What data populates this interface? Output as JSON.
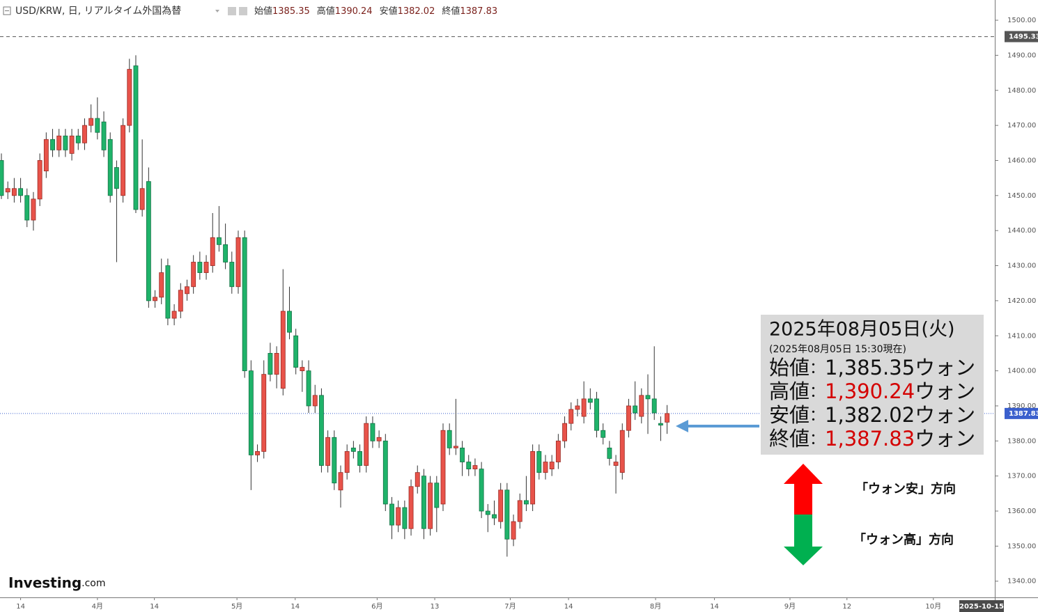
{
  "chart_data": {
    "type": "candlestick",
    "title": "USD/KRW, 日, リアルタイム外国為替",
    "header_values": [
      {
        "label": "始値",
        "value": 1385.35
      },
      {
        "label": "高値",
        "value": 1390.24
      },
      {
        "label": "安値",
        "value": 1382.02
      },
      {
        "label": "終値",
        "value": 1387.83
      }
    ],
    "up_color": "#e8534a",
    "down_color": "#1fb36a",
    "x": [
      0,
      1,
      2,
      3,
      4,
      5,
      6,
      7,
      8,
      9,
      10,
      11,
      12,
      13,
      14,
      15,
      16,
      17,
      18,
      19,
      20,
      21,
      22,
      23,
      24,
      25,
      26,
      27,
      28,
      29,
      30,
      31,
      32,
      33,
      34,
      35,
      36,
      37,
      38,
      39,
      40,
      41,
      42,
      43,
      44,
      45,
      46,
      47,
      48,
      49,
      50,
      51,
      52,
      53,
      54,
      55,
      56,
      57,
      58,
      59,
      60,
      61,
      62,
      63,
      64,
      65,
      66,
      67,
      68,
      69,
      70,
      71,
      72,
      73,
      74,
      75,
      76,
      77,
      78,
      79,
      80,
      81,
      82,
      83,
      84,
      85,
      86,
      87,
      88,
      89,
      90,
      91,
      92,
      93,
      94,
      95,
      96,
      97,
      98,
      99,
      100,
      101,
      102,
      103,
      104
    ],
    "ohlc": [
      [
        1460,
        1462,
        1449,
        1450
      ],
      [
        1451,
        1454,
        1449,
        1452
      ],
      [
        1450,
        1455,
        1448,
        1452
      ],
      [
        1452,
        1455,
        1448,
        1450
      ],
      [
        1450,
        1452,
        1441,
        1443
      ],
      [
        1443,
        1451,
        1440,
        1449
      ],
      [
        1449,
        1462,
        1447,
        1460
      ],
      [
        1457,
        1468,
        1455,
        1466
      ],
      [
        1466,
        1469,
        1461,
        1463
      ],
      [
        1463,
        1469,
        1461,
        1467
      ],
      [
        1467,
        1469,
        1461,
        1463
      ],
      [
        1462,
        1469,
        1460,
        1467
      ],
      [
        1467,
        1469,
        1463,
        1465
      ],
      [
        1465,
        1472,
        1463,
        1470
      ],
      [
        1470,
        1476,
        1468,
        1472
      ],
      [
        1472,
        1478,
        1466,
        1468
      ],
      [
        1471,
        1474,
        1461,
        1463
      ],
      [
        1466,
        1468,
        1448,
        1450
      ],
      [
        1458,
        1460,
        1431,
        1452
      ],
      [
        1450,
        1472,
        1448,
        1470
      ],
      [
        1470,
        1489,
        1468,
        1486
      ],
      [
        1487,
        1490,
        1445,
        1446
      ],
      [
        1446,
        1466,
        1444,
        1452
      ],
      [
        1454,
        1458,
        1418,
        1420
      ],
      [
        1420,
        1423,
        1418,
        1421
      ],
      [
        1421,
        1432,
        1419,
        1428
      ],
      [
        1430,
        1432,
        1413,
        1415
      ],
      [
        1415,
        1419,
        1413,
        1417
      ],
      [
        1417,
        1425,
        1415,
        1423
      ],
      [
        1422,
        1426,
        1420,
        1424
      ],
      [
        1424,
        1433,
        1422,
        1431
      ],
      [
        1431,
        1434,
        1426,
        1428
      ],
      [
        1428,
        1433,
        1426,
        1431
      ],
      [
        1430,
        1445,
        1428,
        1438
      ],
      [
        1438,
        1447,
        1434,
        1436
      ],
      [
        1436,
        1442,
        1429,
        1431
      ],
      [
        1431,
        1434,
        1422,
        1424
      ],
      [
        1424,
        1440,
        1422,
        1438
      ],
      [
        1438,
        1440,
        1398,
        1400
      ],
      [
        1400,
        1403,
        1366,
        1376
      ],
      [
        1376,
        1379,
        1374,
        1377
      ],
      [
        1377,
        1403,
        1375,
        1399
      ],
      [
        1405,
        1408,
        1397,
        1399
      ],
      [
        1399,
        1407,
        1395,
        1405
      ],
      [
        1395,
        1429,
        1393,
        1417
      ],
      [
        1417,
        1424,
        1409,
        1411
      ],
      [
        1410,
        1412,
        1399,
        1401
      ],
      [
        1400,
        1403,
        1394,
        1401
      ],
      [
        1400,
        1403,
        1388,
        1390
      ],
      [
        1390,
        1396,
        1388,
        1393
      ],
      [
        1393,
        1395,
        1371,
        1373
      ],
      [
        1373,
        1383,
        1371,
        1381
      ],
      [
        1381,
        1383,
        1366,
        1368
      ],
      [
        1366,
        1373,
        1361,
        1371
      ],
      [
        1371,
        1379,
        1369,
        1377
      ],
      [
        1378,
        1380,
        1375,
        1377
      ],
      [
        1377,
        1379,
        1371,
        1373
      ],
      [
        1373,
        1387,
        1371,
        1385
      ],
      [
        1385,
        1387,
        1378,
        1380
      ],
      [
        1380,
        1383,
        1378,
        1381
      ],
      [
        1380,
        1382,
        1360,
        1362
      ],
      [
        1362,
        1364,
        1352,
        1356
      ],
      [
        1356,
        1363,
        1354,
        1361
      ],
      [
        1361,
        1363,
        1352,
        1355
      ],
      [
        1355,
        1369,
        1353,
        1367
      ],
      [
        1367,
        1373,
        1365,
        1371
      ],
      [
        1370,
        1372,
        1352,
        1355
      ],
      [
        1355,
        1370,
        1353,
        1368
      ],
      [
        1368,
        1370,
        1354,
        1361
      ],
      [
        1362,
        1385,
        1360,
        1383
      ],
      [
        1383,
        1385,
        1376,
        1378
      ],
      [
        1378,
        1392,
        1376,
        1378.5
      ],
      [
        1378,
        1380,
        1370,
        1374
      ],
      [
        1374,
        1376,
        1370,
        1372
      ],
      [
        1372,
        1375,
        1370,
        1373
      ],
      [
        1372,
        1374,
        1358,
        1360
      ],
      [
        1360,
        1362,
        1354,
        1359
      ],
      [
        1359,
        1363,
        1356,
        1358
      ],
      [
        1357,
        1368,
        1355,
        1366
      ],
      [
        1366,
        1368,
        1347,
        1352
      ],
      [
        1352,
        1359,
        1350,
        1357
      ],
      [
        1357,
        1365,
        1355,
        1363
      ],
      [
        1363,
        1370,
        1360,
        1362
      ],
      [
        1362,
        1379,
        1360,
        1377
      ],
      [
        1377,
        1379,
        1369,
        1371
      ],
      [
        1371,
        1376,
        1369,
        1374
      ],
      [
        1372,
        1376,
        1370,
        1374
      ],
      [
        1374,
        1382,
        1372,
        1380
      ],
      [
        1380,
        1387,
        1378,
        1385
      ],
      [
        1385,
        1391,
        1383,
        1389
      ],
      [
        1389,
        1392,
        1387,
        1390
      ],
      [
        1387,
        1397,
        1385,
        1392
      ],
      [
        1392,
        1395,
        1389,
        1391
      ],
      [
        1392,
        1394,
        1381,
        1383
      ],
      [
        1383,
        1385,
        1379,
        1381
      ],
      [
        1378,
        1380,
        1373,
        1375
      ],
      [
        1373,
        1376,
        1365,
        1374
      ],
      [
        1371,
        1385,
        1369,
        1383
      ],
      [
        1383,
        1392,
        1381,
        1390
      ],
      [
        1390,
        1397,
        1386,
        1388
      ],
      [
        1387,
        1395,
        1385,
        1393
      ],
      [
        1393,
        1399,
        1382,
        1392
      ],
      [
        1392,
        1407,
        1386,
        1388
      ],
      [
        1385,
        1387,
        1380,
        1384.5
      ],
      [
        1385.35,
        1390.24,
        1382.02,
        1387.83
      ]
    ],
    "xlim": [
      -0.22,
      155.2
    ],
    "xticks": [
      {
        "value": 3.0,
        "label": "14"
      },
      {
        "value": 15.0,
        "label": "4月"
      },
      {
        "value": 23.9,
        "label": "14"
      },
      {
        "value": 36.8,
        "label": "5月"
      },
      {
        "value": 45.9,
        "label": "14"
      },
      {
        "value": 58.7,
        "label": "6月"
      },
      {
        "value": 67.7,
        "label": "13"
      },
      {
        "value": 79.5,
        "label": "7月"
      },
      {
        "value": 88.6,
        "label": "14"
      },
      {
        "value": 102.2,
        "label": "8月"
      },
      {
        "value": 111.4,
        "label": "14"
      },
      {
        "value": 123.2,
        "label": "9月"
      },
      {
        "value": 132.1,
        "label": "12"
      },
      {
        "value": 145.6,
        "label": "10月"
      }
    ],
    "x_cursor_label": "2025-10-15",
    "ylim": [
      1335.38,
      1505.77
    ],
    "yticks": [
      {
        "value": 1340,
        "label": "1340.00"
      },
      {
        "value": 1350,
        "label": "1350.00"
      },
      {
        "value": 1360,
        "label": "1360.00"
      },
      {
        "value": 1370,
        "label": "1370.00"
      },
      {
        "value": 1380,
        "label": "1380.00"
      },
      {
        "value": 1390,
        "label": "1390.00"
      },
      {
        "value": 1400,
        "label": "1400.00"
      },
      {
        "value": 1410,
        "label": "1410.00"
      },
      {
        "value": 1420,
        "label": "1420.00"
      },
      {
        "value": 1430,
        "label": "1430.00"
      },
      {
        "value": 1440,
        "label": "1440.00"
      },
      {
        "value": 1450,
        "label": "1450.00"
      },
      {
        "value": 1460,
        "label": "1460.00"
      },
      {
        "value": 1470,
        "label": "1470.00"
      },
      {
        "value": 1480,
        "label": "1480.00"
      },
      {
        "value": 1490,
        "label": "1490.00"
      },
      {
        "value": 1500,
        "label": "1500.00"
      }
    ],
    "price_lines": [
      {
        "value": 1495.33,
        "style": "dashed",
        "color": "#555555"
      },
      {
        "value": 1387.83,
        "style": "dotted",
        "color": "#3a5fcd"
      }
    ],
    "logo": {
      "main": "Investing",
      "suffix": ".com"
    },
    "info_box": {
      "date": "2025年08月05日(火)",
      "note": "(2025年08月05日 15:30現在)",
      "separator": "：",
      "rows": [
        {
          "label": "始値",
          "value": "1,385.35",
          "unit": "ウォン",
          "color": "#111111"
        },
        {
          "label": "高値",
          "value": "1,390.24",
          "unit": "ウォン",
          "color": "#d40000"
        },
        {
          "label": "安値",
          "value": "1,382.02",
          "unit": "ウォン",
          "color": "#111111"
        },
        {
          "label": "終値",
          "value": "1,387.83",
          "unit": "ウォン",
          "color": "#d40000"
        }
      ]
    },
    "arrow_labels": {
      "up": "「ウォン安」方向",
      "down": "「ウォン高」方向"
    }
  }
}
